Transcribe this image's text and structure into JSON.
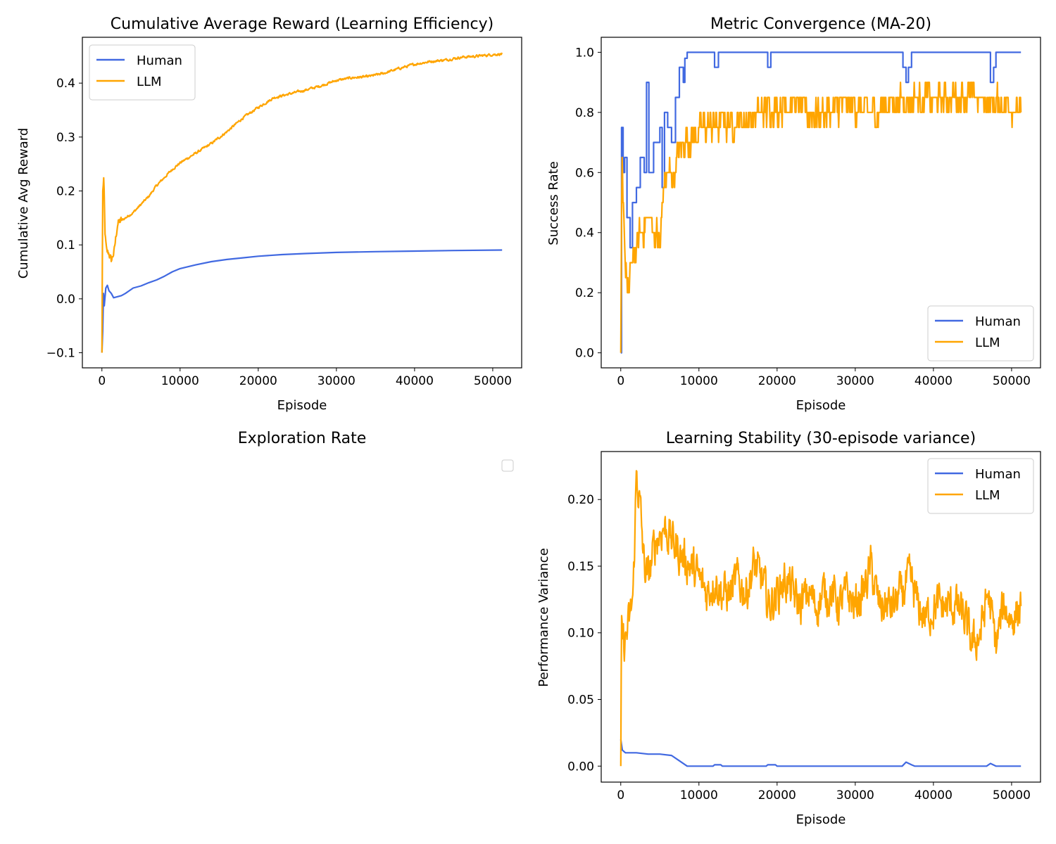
{
  "figure": {
    "background": "#ffffff"
  },
  "chart_data": [
    {
      "type": "line",
      "title": "Cumulative Average Reward (Learning Efficiency)",
      "xlabel": "Episode",
      "ylabel": "Cumulative Avg Reward",
      "xlim": [
        -2500,
        53700
      ],
      "ylim": [
        -0.128,
        0.485
      ],
      "xticks": [
        0,
        10000,
        20000,
        30000,
        40000,
        50000
      ],
      "xtick_labels": [
        "0",
        "10000",
        "20000",
        "30000",
        "40000",
        "50000"
      ],
      "yticks": [
        -0.1,
        0.0,
        0.1,
        0.2,
        0.3,
        0.4
      ],
      "ytick_labels": [
        "−0.1",
        "0.0",
        "0.1",
        "0.2",
        "0.3",
        "0.4"
      ],
      "legend_position": "top-left",
      "series": [
        {
          "name": "Human",
          "color": "#4169e1",
          "style": "smooth",
          "points": [
            [
              0,
              -0.1
            ],
            [
              100,
              -0.06
            ],
            [
              200,
              0.01
            ],
            [
              300,
              -0.013
            ],
            [
              500,
              0.02
            ],
            [
              700,
              0.025
            ],
            [
              900,
              0.015
            ],
            [
              1200,
              0.01
            ],
            [
              1500,
              0.002
            ],
            [
              2000,
              0.004
            ],
            [
              2500,
              0.006
            ],
            [
              3000,
              0.01
            ],
            [
              3500,
              0.015
            ],
            [
              4000,
              0.02
            ],
            [
              5000,
              0.024
            ],
            [
              6000,
              0.03
            ],
            [
              7000,
              0.035
            ],
            [
              8000,
              0.042
            ],
            [
              9000,
              0.05
            ],
            [
              10000,
              0.056
            ],
            [
              12000,
              0.063
            ],
            [
              14000,
              0.069
            ],
            [
              16000,
              0.073
            ],
            [
              18000,
              0.076
            ],
            [
              20000,
              0.079
            ],
            [
              23000,
              0.082
            ],
            [
              26000,
              0.084
            ],
            [
              30000,
              0.086
            ],
            [
              35000,
              0.0875
            ],
            [
              40000,
              0.0885
            ],
            [
              45000,
              0.0895
            ],
            [
              51200,
              0.0905
            ]
          ]
        },
        {
          "name": "LLM",
          "color": "#ffa500",
          "style": "noisy",
          "points": [
            [
              0,
              -0.1
            ],
            [
              100,
              0.2
            ],
            [
              250,
              0.22
            ],
            [
              400,
              0.12
            ],
            [
              600,
              0.085
            ],
            [
              900,
              0.085
            ],
            [
              1200,
              0.07
            ],
            [
              1600,
              0.09
            ],
            [
              2000,
              0.14
            ],
            [
              3000,
              0.15
            ],
            [
              4000,
              0.16
            ],
            [
              5000,
              0.175
            ],
            [
              6000,
              0.19
            ],
            [
              7000,
              0.21
            ],
            [
              8000,
              0.225
            ],
            [
              9000,
              0.24
            ],
            [
              10000,
              0.252
            ],
            [
              12000,
              0.27
            ],
            [
              14000,
              0.288
            ],
            [
              16000,
              0.31
            ],
            [
              18000,
              0.335
            ],
            [
              20000,
              0.355
            ],
            [
              22000,
              0.373
            ],
            [
              24000,
              0.38
            ],
            [
              26000,
              0.387
            ],
            [
              28000,
              0.395
            ],
            [
              30000,
              0.405
            ],
            [
              32000,
              0.41
            ],
            [
              34000,
              0.412
            ],
            [
              36000,
              0.418
            ],
            [
              38000,
              0.427
            ],
            [
              40000,
              0.435
            ],
            [
              42000,
              0.44
            ],
            [
              44000,
              0.443
            ],
            [
              46000,
              0.448
            ],
            [
              48000,
              0.45
            ],
            [
              50000,
              0.453
            ],
            [
              51200,
              0.454
            ]
          ]
        }
      ]
    },
    {
      "type": "line",
      "title": "Metric Convergence (MA-20)",
      "xlabel": "Episode",
      "ylabel": "Success Rate",
      "xlim": [
        -2500,
        53700
      ],
      "ylim": [
        -0.05,
        1.05
      ],
      "xticks": [
        0,
        10000,
        20000,
        30000,
        40000,
        50000
      ],
      "xtick_labels": [
        "0",
        "10000",
        "20000",
        "30000",
        "40000",
        "50000"
      ],
      "yticks": [
        0.0,
        0.2,
        0.4,
        0.6,
        0.8,
        1.0
      ],
      "ytick_labels": [
        "0.0",
        "0.2",
        "0.4",
        "0.6",
        "0.8",
        "1.0"
      ],
      "legend_position": "bottom-right",
      "series": [
        {
          "name": "Human",
          "color": "#4169e1",
          "style": "step",
          "points": [
            [
              0,
              0.0
            ],
            [
              100,
              0.75
            ],
            [
              300,
              0.6
            ],
            [
              500,
              0.65
            ],
            [
              800,
              0.45
            ],
            [
              1200,
              0.35
            ],
            [
              1500,
              0.5
            ],
            [
              2000,
              0.55
            ],
            [
              2500,
              0.65
            ],
            [
              3000,
              0.6
            ],
            [
              3300,
              0.9
            ],
            [
              3600,
              0.6
            ],
            [
              4200,
              0.7
            ],
            [
              5000,
              0.75
            ],
            [
              5300,
              0.55
            ],
            [
              5600,
              0.8
            ],
            [
              6000,
              0.75
            ],
            [
              6500,
              0.7
            ],
            [
              7000,
              0.85
            ],
            [
              7500,
              0.95
            ],
            [
              8000,
              0.9
            ],
            [
              8200,
              0.98
            ],
            [
              8500,
              1.0
            ],
            [
              11800,
              1.0
            ],
            [
              12000,
              0.95
            ],
            [
              12500,
              1.0
            ],
            [
              18600,
              1.0
            ],
            [
              18800,
              0.95
            ],
            [
              19200,
              1.0
            ],
            [
              35900,
              1.0
            ],
            [
              36100,
              0.95
            ],
            [
              36500,
              0.9
            ],
            [
              36800,
              0.95
            ],
            [
              37200,
              1.0
            ],
            [
              47100,
              1.0
            ],
            [
              47300,
              0.9
            ],
            [
              47700,
              0.95
            ],
            [
              48000,
              1.0
            ],
            [
              51200,
              1.0
            ]
          ]
        },
        {
          "name": "LLM",
          "color": "#ffa500",
          "style": "noisy",
          "points": [
            [
              0,
              0.0
            ],
            [
              150,
              0.62
            ],
            [
              300,
              0.45
            ],
            [
              600,
              0.3
            ],
            [
              1000,
              0.2
            ],
            [
              1500,
              0.3
            ],
            [
              2000,
              0.35
            ],
            [
              2500,
              0.4
            ],
            [
              3000,
              0.42
            ],
            [
              3500,
              0.45
            ],
            [
              4000,
              0.42
            ],
            [
              4500,
              0.4
            ],
            [
              5000,
              0.35
            ],
            [
              5500,
              0.55
            ],
            [
              6000,
              0.6
            ],
            [
              6500,
              0.58
            ],
            [
              7000,
              0.62
            ],
            [
              7500,
              0.68
            ],
            [
              8000,
              0.7
            ],
            [
              9000,
              0.72
            ],
            [
              10000,
              0.74
            ],
            [
              11000,
              0.75
            ],
            [
              12000,
              0.75
            ],
            [
              13000,
              0.77
            ],
            [
              14000,
              0.76
            ],
            [
              15000,
              0.78
            ],
            [
              16000,
              0.77
            ],
            [
              17000,
              0.78
            ],
            [
              18000,
              0.8
            ],
            [
              20000,
              0.82
            ],
            [
              22000,
              0.83
            ],
            [
              24000,
              0.8
            ],
            [
              26000,
              0.8
            ],
            [
              28000,
              0.82
            ],
            [
              30000,
              0.82
            ],
            [
              32000,
              0.8
            ],
            [
              34000,
              0.83
            ],
            [
              36000,
              0.84
            ],
            [
              38000,
              0.85
            ],
            [
              40000,
              0.84
            ],
            [
              42000,
              0.85
            ],
            [
              44000,
              0.86
            ],
            [
              46000,
              0.84
            ],
            [
              48000,
              0.83
            ],
            [
              50000,
              0.83
            ],
            [
              51200,
              0.8
            ]
          ]
        }
      ]
    },
    {
      "type": "line",
      "title": "Exploration Rate",
      "empty": true,
      "legend_position": "top-right"
    },
    {
      "type": "line",
      "title": "Learning Stability (30-episode variance)",
      "xlabel": "Episode",
      "ylabel": "Performance Variance",
      "xlim": [
        -2500,
        53700
      ],
      "ylim": [
        -0.012,
        0.236
      ],
      "xticks": [
        0,
        10000,
        20000,
        30000,
        40000,
        50000
      ],
      "xtick_labels": [
        "0",
        "10000",
        "20000",
        "30000",
        "40000",
        "50000"
      ],
      "yticks": [
        0.0,
        0.05,
        0.1,
        0.15,
        0.2
      ],
      "ytick_labels": [
        "0.00",
        "0.05",
        "0.10",
        "0.15",
        "0.20"
      ],
      "legend_position": "top-right",
      "series": [
        {
          "name": "Human",
          "color": "#4169e1",
          "style": "smooth",
          "points": [
            [
              0,
              0.02
            ],
            [
              200,
              0.012
            ],
            [
              600,
              0.01
            ],
            [
              2000,
              0.01
            ],
            [
              3500,
              0.009
            ],
            [
              5000,
              0.009
            ],
            [
              6500,
              0.008
            ],
            [
              7500,
              0.004
            ],
            [
              8500,
              0.0
            ],
            [
              11800,
              0.0
            ],
            [
              12000,
              0.001
            ],
            [
              12800,
              0.001
            ],
            [
              13000,
              0.0
            ],
            [
              18600,
              0.0
            ],
            [
              18800,
              0.001
            ],
            [
              19800,
              0.001
            ],
            [
              20000,
              0.0
            ],
            [
              36000,
              0.0
            ],
            [
              36500,
              0.003
            ],
            [
              37200,
              0.001
            ],
            [
              37600,
              0.0
            ],
            [
              46800,
              0.0
            ],
            [
              47300,
              0.002
            ],
            [
              48000,
              0.0
            ],
            [
              51200,
              0.0
            ]
          ]
        },
        {
          "name": "LLM",
          "color": "#ffa500",
          "style": "noisy",
          "points": [
            [
              0,
              0.0
            ],
            [
              100,
              0.1
            ],
            [
              400,
              0.09
            ],
            [
              800,
              0.1
            ],
            [
              1200,
              0.11
            ],
            [
              1600,
              0.13
            ],
            [
              2000,
              0.22
            ],
            [
              2400,
              0.2
            ],
            [
              3000,
              0.15
            ],
            [
              3500,
              0.14
            ],
            [
              4500,
              0.17
            ],
            [
              5500,
              0.18
            ],
            [
              6500,
              0.17
            ],
            [
              7500,
              0.16
            ],
            [
              9000,
              0.15
            ],
            [
              10000,
              0.14
            ],
            [
              11000,
              0.13
            ],
            [
              12000,
              0.14
            ],
            [
              13000,
              0.13
            ],
            [
              14000,
              0.13
            ],
            [
              15000,
              0.14
            ],
            [
              16000,
              0.13
            ],
            [
              17000,
              0.15
            ],
            [
              18000,
              0.14
            ],
            [
              19000,
              0.12
            ],
            [
              20000,
              0.13
            ],
            [
              21000,
              0.14
            ],
            [
              22000,
              0.13
            ],
            [
              23000,
              0.12
            ],
            [
              24000,
              0.13
            ],
            [
              25000,
              0.12
            ],
            [
              26000,
              0.13
            ],
            [
              27000,
              0.13
            ],
            [
              28000,
              0.12
            ],
            [
              29000,
              0.13
            ],
            [
              30000,
              0.12
            ],
            [
              31000,
              0.13
            ],
            [
              32000,
              0.15
            ],
            [
              33000,
              0.12
            ],
            [
              34000,
              0.12
            ],
            [
              35000,
              0.12
            ],
            [
              36000,
              0.13
            ],
            [
              37000,
              0.14
            ],
            [
              38000,
              0.12
            ],
            [
              39000,
              0.11
            ],
            [
              40000,
              0.12
            ],
            [
              41000,
              0.12
            ],
            [
              42000,
              0.12
            ],
            [
              43000,
              0.12
            ],
            [
              44000,
              0.11
            ],
            [
              45000,
              0.09
            ],
            [
              46000,
              0.1
            ],
            [
              47000,
              0.13
            ],
            [
              48000,
              0.09
            ],
            [
              49000,
              0.12
            ],
            [
              50000,
              0.11
            ],
            [
              51200,
              0.12
            ]
          ]
        }
      ]
    }
  ]
}
